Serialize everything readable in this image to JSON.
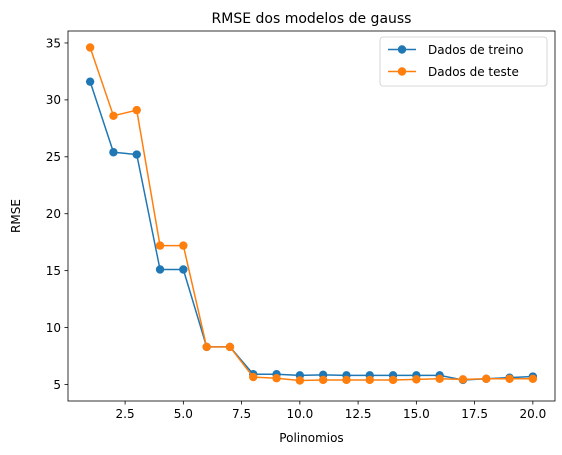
{
  "chart_data": {
    "type": "line",
    "title": "RMSE dos modelos de gauss",
    "xlabel": "Polinomios",
    "ylabel": "RMSE",
    "xlim": [
      0.05,
      20.95
    ],
    "ylim": [
      3.55,
      36.05
    ],
    "xticks": [
      2.5,
      5.0,
      7.5,
      10.0,
      12.5,
      15.0,
      17.5,
      20.0
    ],
    "xtick_labels": [
      "2.5",
      "5.0",
      "7.5",
      "10.0",
      "12.5",
      "15.0",
      "17.5",
      "20.0"
    ],
    "yticks": [
      5,
      10,
      15,
      20,
      25,
      30,
      35
    ],
    "ytick_labels": [
      "5",
      "10",
      "15",
      "20",
      "25",
      "30",
      "35"
    ],
    "grid": false,
    "legend_position": "top-right",
    "x": [
      1,
      2,
      3,
      4,
      5,
      6,
      7,
      8,
      9,
      10,
      11,
      12,
      13,
      14,
      15,
      16,
      17,
      18,
      19,
      20
    ],
    "series": [
      {
        "name": "Dados de treino",
        "color": "#1f77b4",
        "values": [
          31.6,
          25.4,
          25.2,
          15.1,
          15.1,
          8.3,
          8.3,
          5.9,
          5.9,
          5.8,
          5.85,
          5.8,
          5.8,
          5.8,
          5.8,
          5.8,
          5.4,
          5.5,
          5.6,
          5.7
        ]
      },
      {
        "name": "Dados de teste",
        "color": "#ff7f0e",
        "values": [
          34.6,
          28.6,
          29.1,
          17.2,
          17.2,
          8.3,
          8.3,
          5.65,
          5.55,
          5.35,
          5.4,
          5.4,
          5.4,
          5.4,
          5.45,
          5.5,
          5.45,
          5.5,
          5.5,
          5.5
        ]
      }
    ]
  }
}
